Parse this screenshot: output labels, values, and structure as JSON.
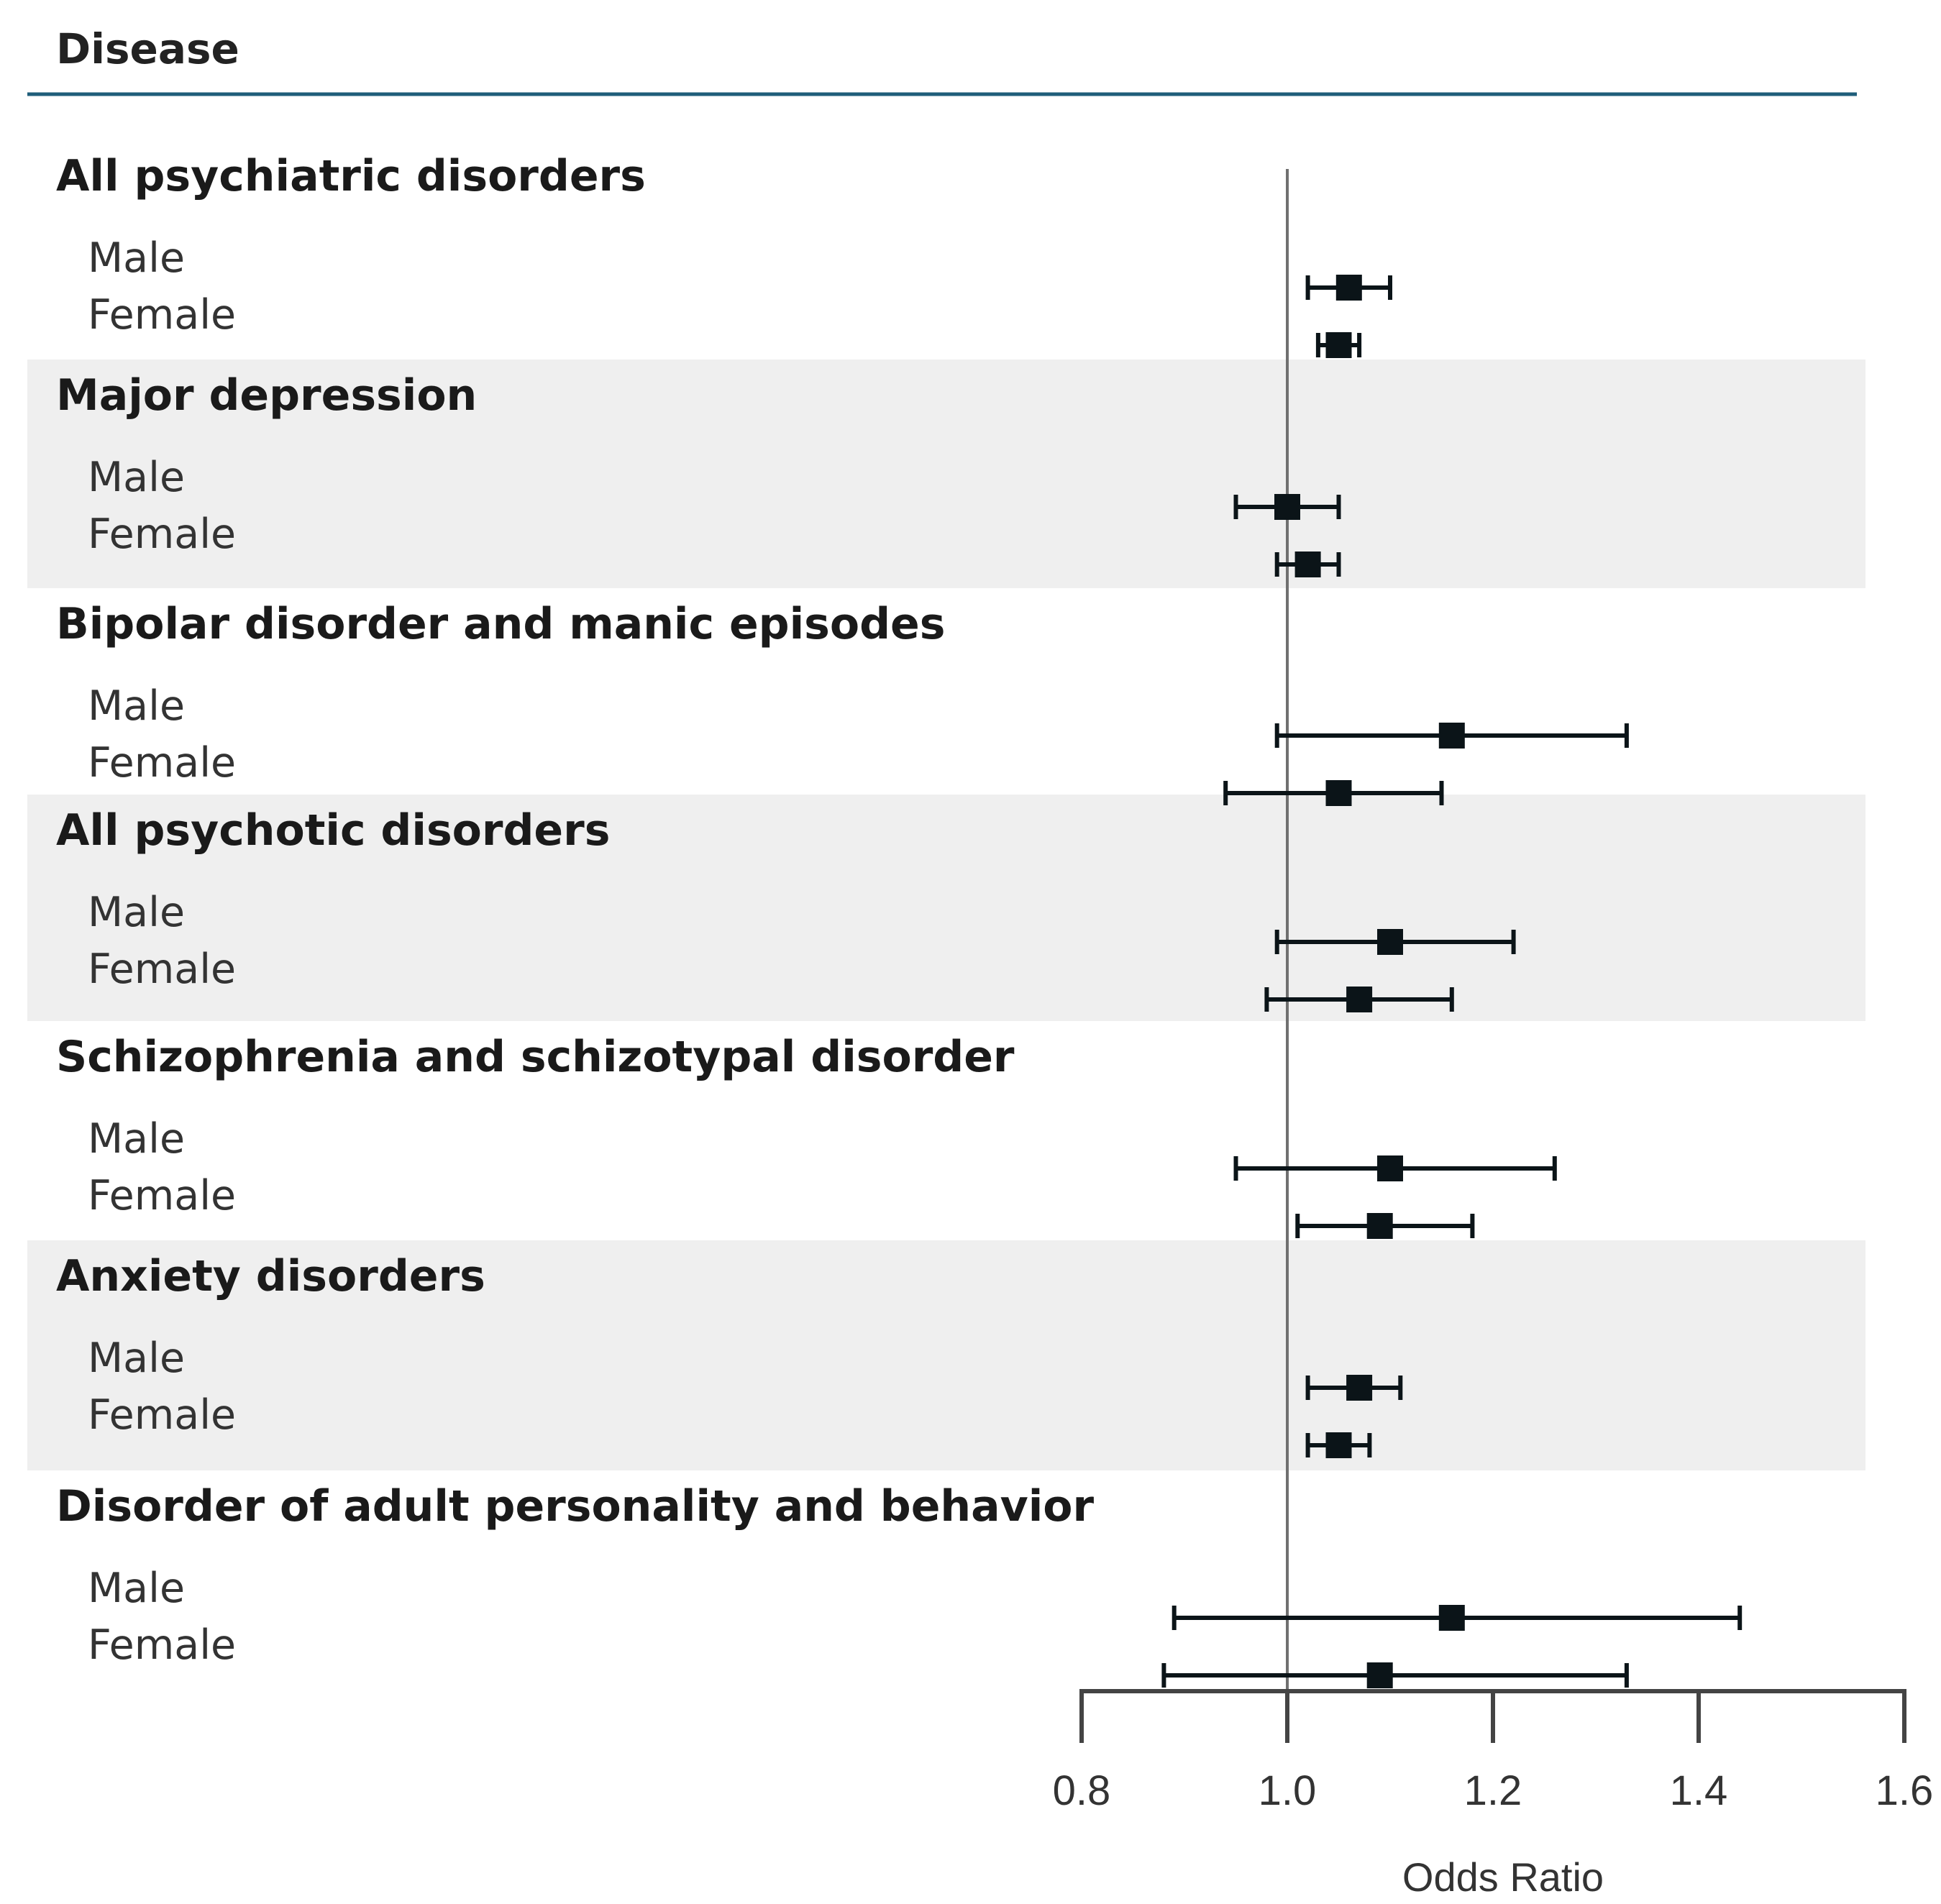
{
  "chart_data": {
    "type": "forest",
    "header": "Disease",
    "xlabel": "Odds Ratio",
    "xlim": [
      0.8,
      1.6
    ],
    "xticks": [
      "0.8",
      "1.0",
      "1.2",
      "1.4",
      "1.6"
    ],
    "reference_line": 1.0,
    "colors": {
      "header_rule": "#1f5e7a",
      "band": "#efefef",
      "marker": "#0b1418",
      "reference": "#707070"
    },
    "groups": [
      {
        "label": "All psychiatric disorders",
        "shaded": false,
        "rows": [
          {
            "label": "Male",
            "or": 1.06,
            "lower": 1.02,
            "upper": 1.1
          },
          {
            "label": "Female",
            "or": 1.05,
            "lower": 1.03,
            "upper": 1.07
          }
        ]
      },
      {
        "label": "Major depression",
        "shaded": true,
        "rows": [
          {
            "label": "Male",
            "or": 1.0,
            "lower": 0.95,
            "upper": 1.05
          },
          {
            "label": "Female",
            "or": 1.02,
            "lower": 0.99,
            "upper": 1.05
          }
        ]
      },
      {
        "label": "Bipolar disorder and manic episodes",
        "shaded": false,
        "rows": [
          {
            "label": "Male",
            "or": 1.16,
            "lower": 0.99,
            "upper": 1.33
          },
          {
            "label": "Female",
            "or": 1.05,
            "lower": 0.94,
            "upper": 1.15
          }
        ]
      },
      {
        "label": "All psychotic disorders",
        "shaded": true,
        "rows": [
          {
            "label": "Male",
            "or": 1.1,
            "lower": 0.99,
            "upper": 1.22
          },
          {
            "label": "Female",
            "or": 1.07,
            "lower": 0.98,
            "upper": 1.16
          }
        ]
      },
      {
        "label": "Schizophrenia and schizotypal disorder",
        "shaded": false,
        "rows": [
          {
            "label": "Male",
            "or": 1.1,
            "lower": 0.95,
            "upper": 1.26
          },
          {
            "label": "Female",
            "or": 1.09,
            "lower": 1.01,
            "upper": 1.18
          }
        ]
      },
      {
        "label": "Anxiety disorders",
        "shaded": true,
        "rows": [
          {
            "label": "Male",
            "or": 1.07,
            "lower": 1.02,
            "upper": 1.11
          },
          {
            "label": "Female",
            "or": 1.05,
            "lower": 1.02,
            "upper": 1.08
          }
        ]
      },
      {
        "label": "Disorder of adult personality and behavior",
        "shaded": false,
        "rows": [
          {
            "label": "Male",
            "or": 1.16,
            "lower": 0.89,
            "upper": 1.44
          },
          {
            "label": "Female",
            "or": 1.09,
            "lower": 0.88,
            "upper": 1.33
          }
        ]
      }
    ]
  }
}
